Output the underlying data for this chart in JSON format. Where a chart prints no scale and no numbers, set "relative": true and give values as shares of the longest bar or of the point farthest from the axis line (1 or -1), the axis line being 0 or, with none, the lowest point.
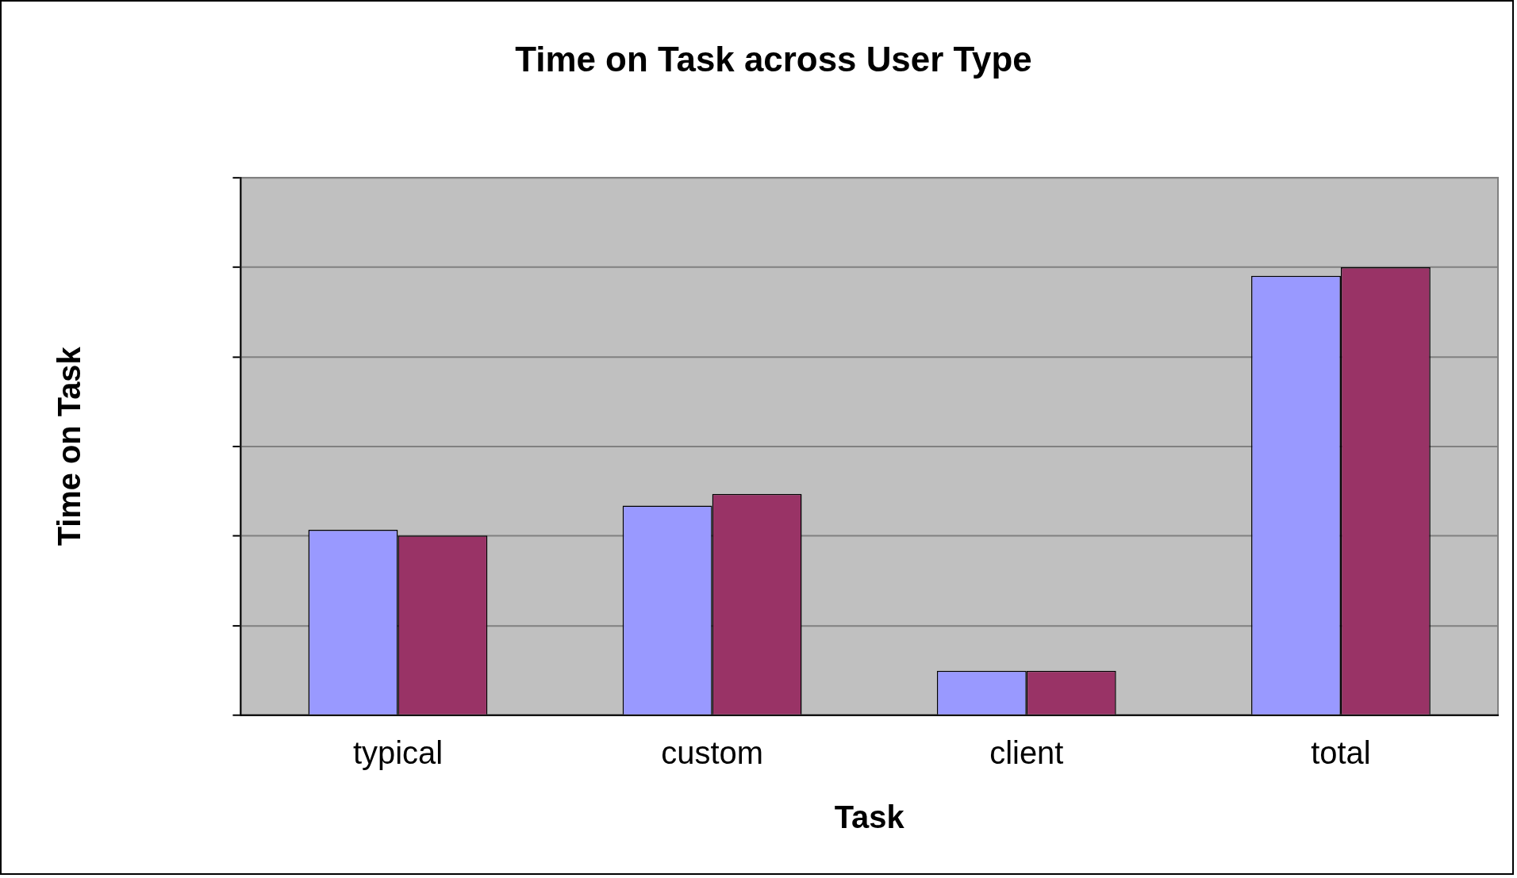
{
  "chart_data": {
    "type": "bar",
    "title": "Time on Task across User Type",
    "xlabel": "Task",
    "ylabel": "Time on Task",
    "categories": [
      "typical",
      "custom",
      "client",
      "total"
    ],
    "relative": true,
    "grid": "y",
    "legend": false,
    "series": [
      {
        "color": "#9999ff",
        "values": [
          0.414,
          0.468,
          0.099,
          0.981
        ]
      },
      {
        "color": "#993366",
        "values": [
          0.401,
          0.494,
          0.099,
          1
        ]
      }
    ]
  }
}
